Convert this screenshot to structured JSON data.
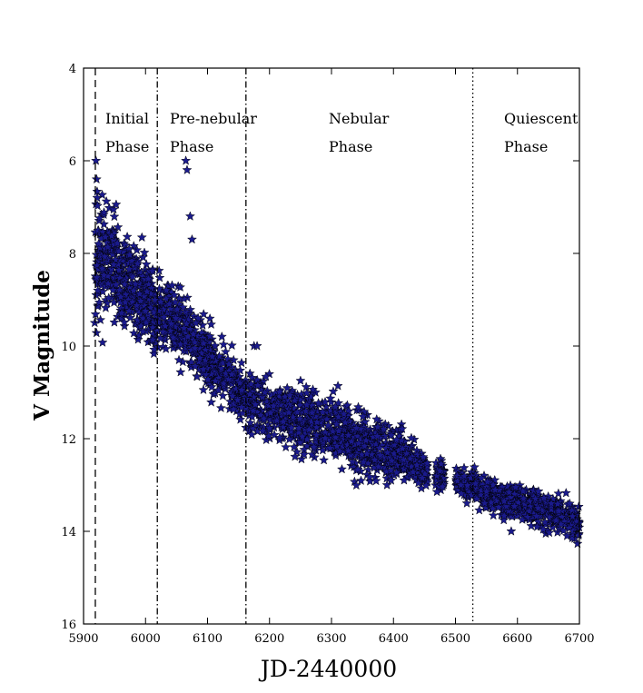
{
  "chart_data": {
    "type": "scatter",
    "title": "",
    "xlabel": "JD-2440000",
    "ylabel": "V Magnitude",
    "xlim": [
      5900,
      6700
    ],
    "ylim": [
      4,
      16
    ],
    "y_inverted": true,
    "x_ticks": [
      5900,
      6000,
      6100,
      6200,
      6300,
      6400,
      6500,
      6600,
      6700
    ],
    "y_ticks": [
      4,
      6,
      8,
      10,
      12,
      14,
      16
    ],
    "grid": false,
    "marker": "star",
    "marker_color": "#1a1a8c",
    "phase_boundaries": [
      {
        "x": 5919,
        "style": "dashed"
      },
      {
        "x": 6019,
        "style": "dashdot"
      },
      {
        "x": 6162,
        "style": "dashdot"
      },
      {
        "x": 6528,
        "style": "dotted"
      }
    ],
    "phases": [
      {
        "line1": "Initial",
        "line2": "Phase"
      },
      {
        "line1": "Pre-nebular",
        "line2": "Phase"
      },
      {
        "line1": "Nebular",
        "line2": "Phase"
      },
      {
        "line1": "Quiescent",
        "line2": "Phase"
      }
    ],
    "trend": [
      {
        "x": 5919,
        "y": 8.3
      },
      {
        "x": 5940,
        "y": 8.0
      },
      {
        "x": 5970,
        "y": 8.6
      },
      {
        "x": 6000,
        "y": 9.0
      },
      {
        "x": 6020,
        "y": 9.3
      },
      {
        "x": 6060,
        "y": 9.6
      },
      {
        "x": 6100,
        "y": 10.3
      },
      {
        "x": 6140,
        "y": 10.8
      },
      {
        "x": 6170,
        "y": 11.2
      },
      {
        "x": 6200,
        "y": 11.4
      },
      {
        "x": 6250,
        "y": 11.6
      },
      {
        "x": 6300,
        "y": 11.8
      },
      {
        "x": 6350,
        "y": 12.1
      },
      {
        "x": 6400,
        "y": 12.3
      },
      {
        "x": 6450,
        "y": 12.7
      },
      {
        "x": 6500,
        "y": 12.9
      },
      {
        "x": 6550,
        "y": 13.2
      },
      {
        "x": 6600,
        "y": 13.4
      },
      {
        "x": 6650,
        "y": 13.6
      },
      {
        "x": 6700,
        "y": 13.8
      }
    ],
    "scatter_width": [
      {
        "x": 5919,
        "w": 1.4
      },
      {
        "x": 6000,
        "w": 0.9
      },
      {
        "x": 6160,
        "w": 0.6
      },
      {
        "x": 6260,
        "w": 0.8
      },
      {
        "x": 6400,
        "w": 0.7
      },
      {
        "x": 6460,
        "w": 0.3
      },
      {
        "x": 6700,
        "w": 0.5
      }
    ],
    "outliers": [
      {
        "x": 5920,
        "y": 6.0
      },
      {
        "x": 5921,
        "y": 6.4
      },
      {
        "x": 5922,
        "y": 6.8
      },
      {
        "x": 6065,
        "y": 6.0
      },
      {
        "x": 6067,
        "y": 6.2
      },
      {
        "x": 6072,
        "y": 7.2
      },
      {
        "x": 6075,
        "y": 7.7
      },
      {
        "x": 5918,
        "y": 9.5
      },
      {
        "x": 6175,
        "y": 10.0
      },
      {
        "x": 6180,
        "y": 10.0
      },
      {
        "x": 6470,
        "y": 12.8
      },
      {
        "x": 6475,
        "y": 12.7
      },
      {
        "x": 6590,
        "y": 14.0
      },
      {
        "x": 6680,
        "y": 14.1
      }
    ]
  }
}
